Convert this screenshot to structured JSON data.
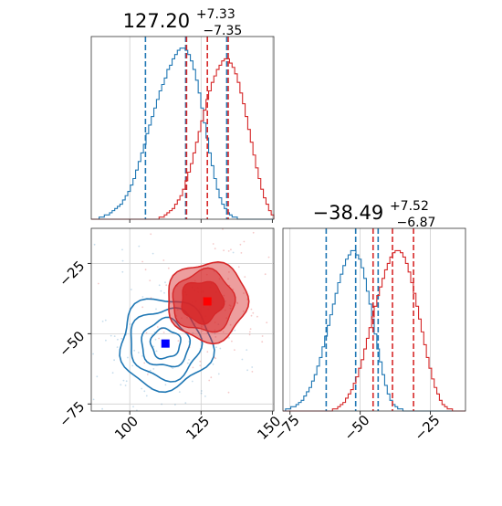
{
  "chart_data": {
    "type": "corner",
    "colors": {
      "blue": "#1f77b4",
      "red": "#d62728",
      "marker_blue": "#0000ff",
      "marker_red": "#ff0000"
    },
    "title_x": {
      "median": "127.20",
      "plus": "+7.33",
      "minus": "−7.35"
    },
    "title_y": {
      "median": "−38.49",
      "plus": "+7.52",
      "minus": "−6.87"
    },
    "x_ticks": [
      {
        "value": 100,
        "label": "100"
      },
      {
        "value": 125,
        "label": "125"
      },
      {
        "value": 150,
        "label": "150"
      }
    ],
    "y_ticks": [
      {
        "value": -25,
        "label": "−25"
      },
      {
        "value": -50,
        "label": "−50"
      },
      {
        "value": -75,
        "label": "−75"
      }
    ],
    "xlim": [
      86.5,
      150.5
    ],
    "ylim": [
      -77.5,
      -12.5
    ],
    "hist_x_series": [
      {
        "name": "",
        "color": "blue",
        "values": [
          0,
          0,
          0,
          1,
          1,
          2,
          2,
          3,
          4,
          5,
          6,
          7,
          9,
          11,
          13,
          16,
          19,
          23,
          27,
          31,
          35,
          40,
          44,
          48,
          52,
          56,
          60,
          63,
          66,
          70,
          72,
          75,
          77,
          79,
          80,
          80,
          79,
          77,
          74,
          70,
          65,
          59,
          52,
          45,
          38,
          31,
          25,
          19,
          14,
          10,
          7,
          5,
          3,
          2,
          1,
          1,
          0,
          0,
          0,
          0,
          0,
          0,
          0,
          0,
          0,
          0,
          0,
          0,
          0,
          0
        ],
        "quantiles": [
          105.5,
          119.6,
          134.0
        ]
      },
      {
        "name": "",
        "color": "red",
        "values": [
          0,
          0,
          0,
          0,
          0,
          0,
          0,
          0,
          0,
          0,
          0,
          0,
          0,
          0,
          0,
          0,
          0,
          0,
          0,
          0,
          0,
          0,
          0,
          0,
          0,
          0,
          1,
          1,
          2,
          3,
          4,
          5,
          7,
          9,
          11,
          14,
          18,
          22,
          26,
          31,
          36,
          41,
          46,
          51,
          56,
          60,
          64,
          67,
          70,
          72,
          74,
          75,
          75,
          73,
          71,
          68,
          64,
          59,
          54,
          48,
          42,
          36,
          30,
          24,
          19,
          14,
          10,
          7,
          4,
          2
        ],
        "quantiles": [
          119.9,
          127.2,
          134.5
        ]
      }
    ],
    "hist_y_series": [
      {
        "name": "",
        "color": "blue",
        "values": [
          0,
          1,
          1,
          2,
          2,
          3,
          4,
          5,
          7,
          9,
          11,
          14,
          17,
          21,
          25,
          30,
          35,
          40,
          45,
          50,
          55,
          60,
          64,
          68,
          71,
          73,
          75,
          75,
          73,
          71,
          67,
          62,
          56,
          50,
          43,
          36,
          29,
          23,
          17,
          12,
          8,
          5,
          3,
          2,
          1,
          1,
          0,
          0,
          0,
          0,
          0,
          0,
          0,
          0,
          0,
          0,
          0,
          0,
          0,
          0,
          0,
          0,
          0,
          0,
          0,
          0,
          0,
          0,
          0,
          0
        ],
        "quantiles": [
          -62.1,
          -51.6,
          -43.6
        ]
      },
      {
        "name": "",
        "color": "red",
        "values": [
          0,
          0,
          0,
          0,
          0,
          0,
          0,
          0,
          0,
          0,
          0,
          0,
          0,
          0,
          0,
          0,
          0,
          0,
          0,
          1,
          1,
          2,
          3,
          4,
          6,
          8,
          10,
          13,
          16,
          20,
          24,
          29,
          34,
          39,
          44,
          49,
          54,
          58,
          62,
          66,
          69,
          72,
          74,
          75,
          75,
          74,
          72,
          69,
          65,
          60,
          55,
          49,
          43,
          37,
          31,
          25,
          20,
          15,
          11,
          8,
          5,
          3,
          2,
          1,
          1,
          0,
          0,
          0,
          0,
          0
        ],
        "quantiles": [
          -45.4,
          -38.5,
          -31.0
        ]
      }
    ],
    "scatter_2d": [
      {
        "name": "",
        "color": "blue",
        "center": [
          112.5,
          -53.5
        ],
        "sigma": [
          8,
          8.5
        ]
      },
      {
        "name": "",
        "color": "red",
        "center": [
          127.2,
          -38.5
        ],
        "sigma": [
          7,
          7
        ]
      }
    ],
    "markers": [
      {
        "color": "marker_blue",
        "x": 112.5,
        "y": -53.5
      },
      {
        "color": "marker_red",
        "x": 127.2,
        "y": -38.5
      }
    ]
  }
}
